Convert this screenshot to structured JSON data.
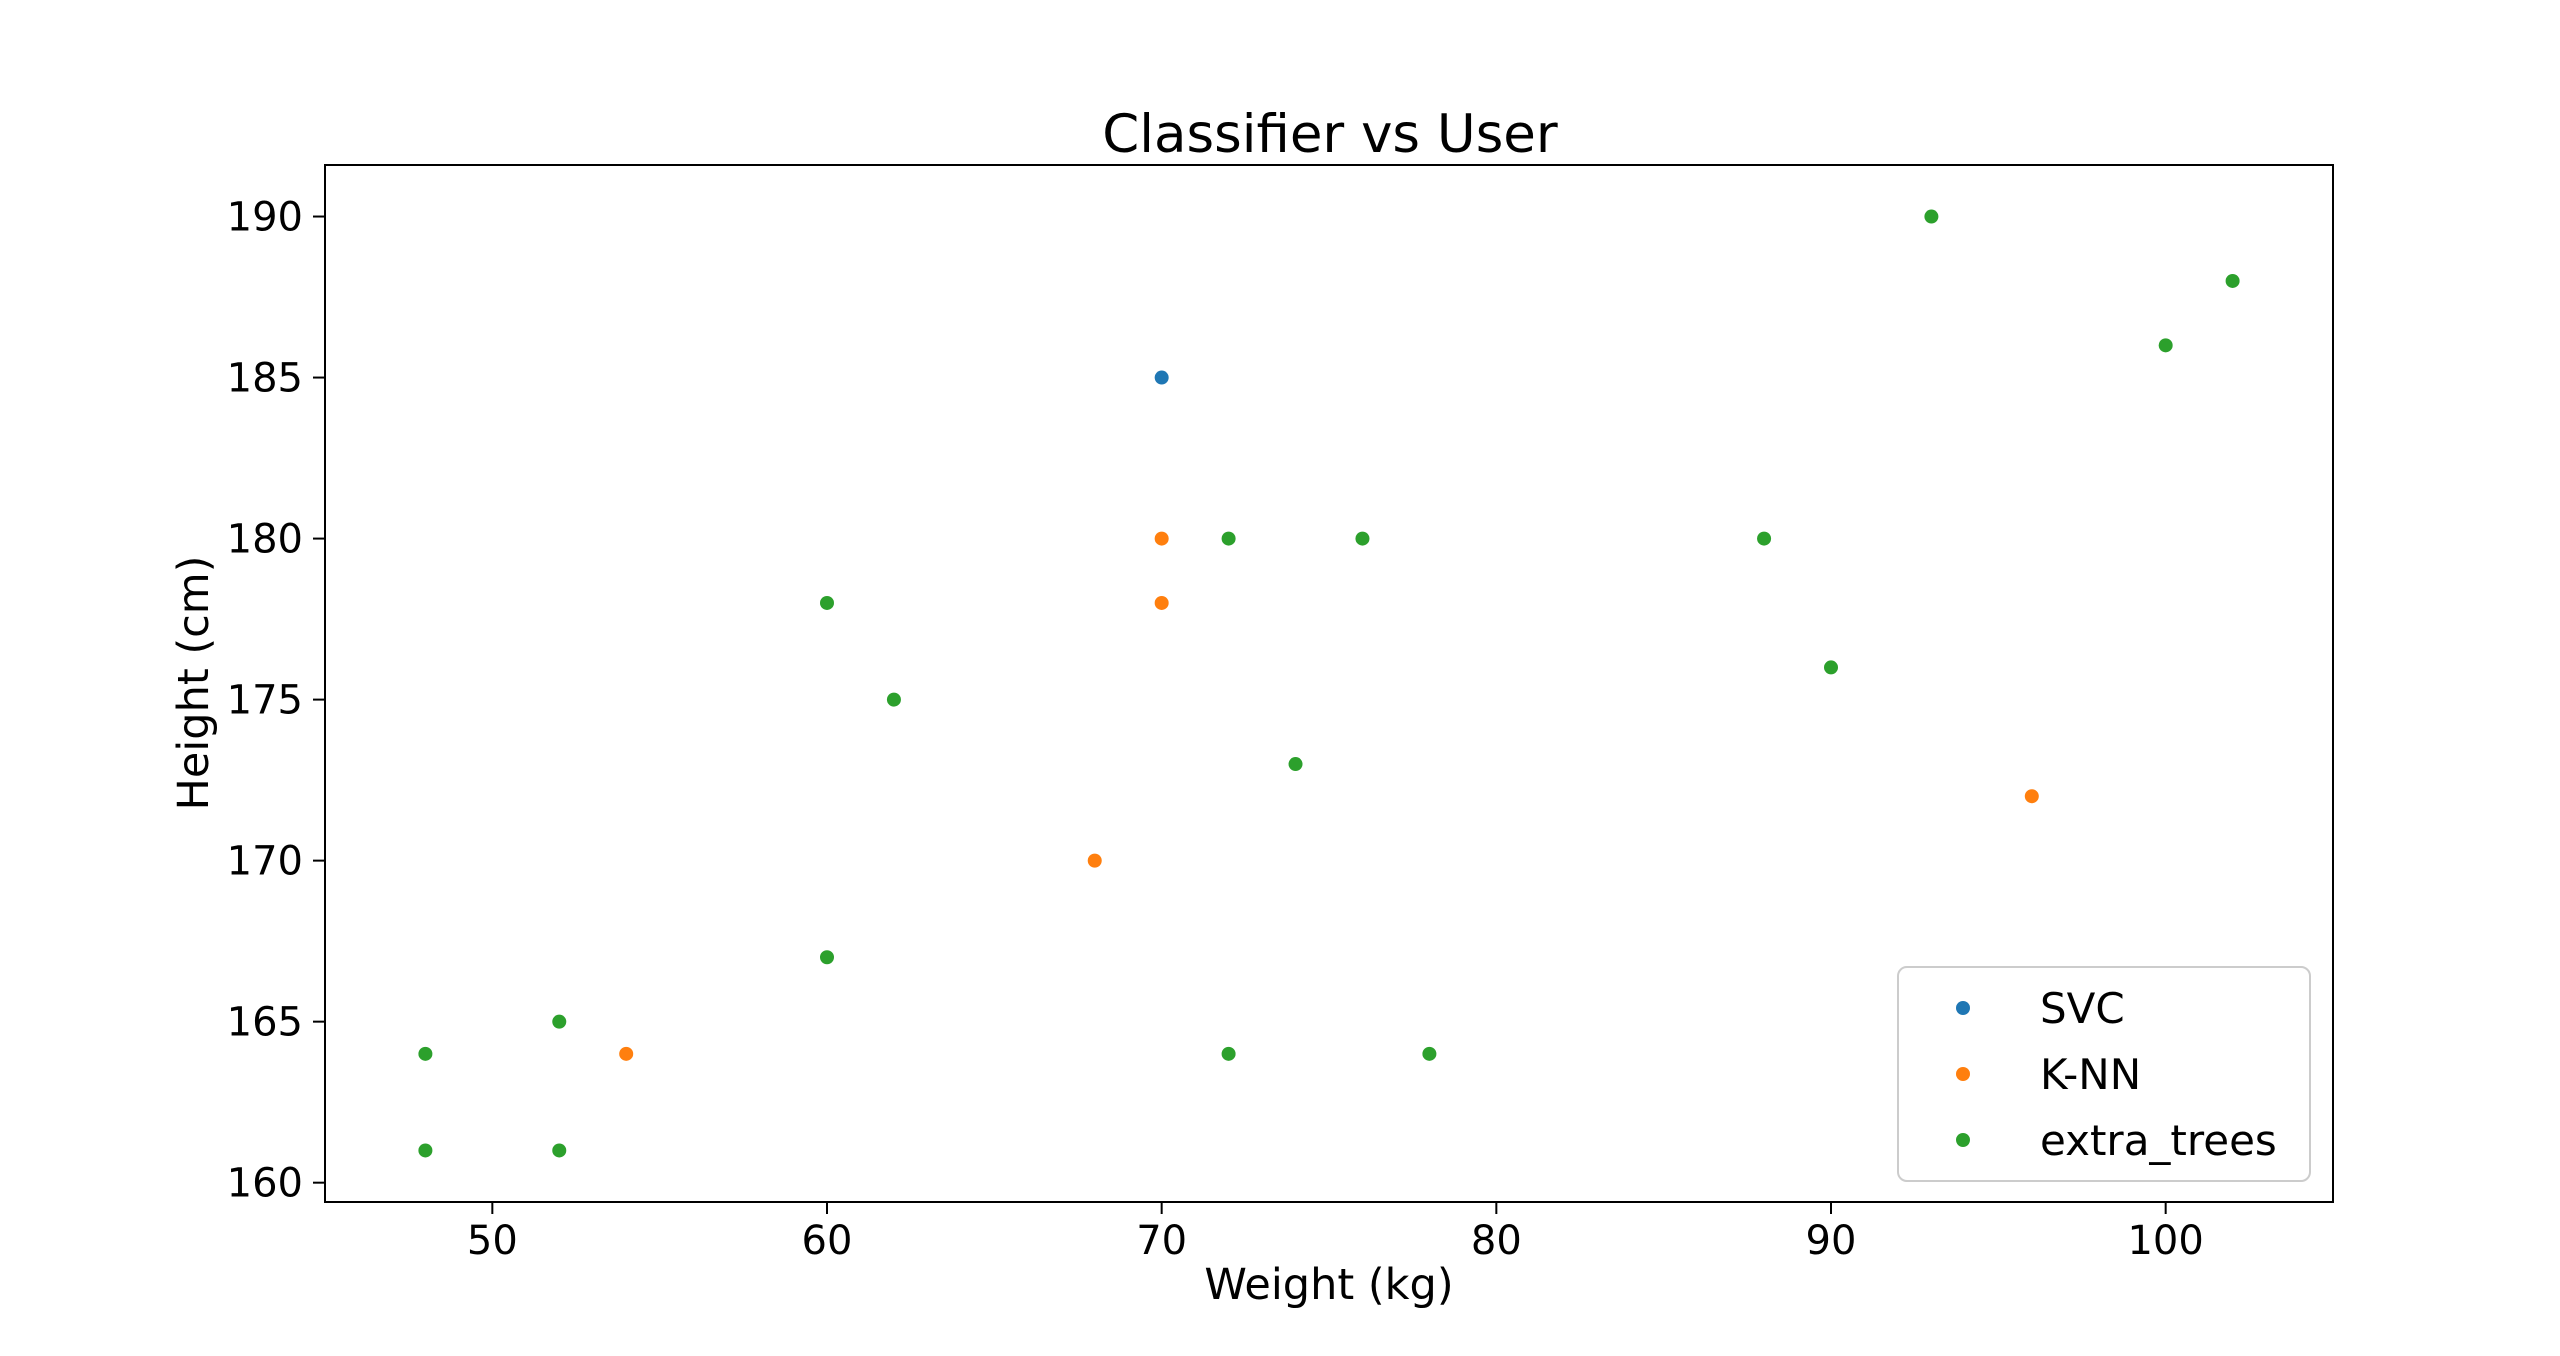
{
  "chart_data": {
    "type": "scatter",
    "title": "Classifier vs User",
    "xlabel": "Weight (kg)",
    "ylabel": "Height (cm)",
    "xlim": [
      45,
      105
    ],
    "ylim": [
      159.4,
      191.6
    ],
    "xticks": [
      50,
      60,
      70,
      80,
      90,
      100
    ],
    "yticks": [
      160,
      165,
      170,
      175,
      180,
      185,
      190
    ],
    "grid": false,
    "legend_position": "lower-right",
    "series": [
      {
        "name": "SVC",
        "color": "#1f77b4",
        "points": [
          [
            70,
            185
          ]
        ]
      },
      {
        "name": "K-NN",
        "color": "#ff7f0e",
        "points": [
          [
            70,
            180
          ],
          [
            70,
            178
          ],
          [
            68,
            170
          ],
          [
            54,
            164
          ],
          [
            96,
            172
          ]
        ]
      },
      {
        "name": "extra_trees",
        "color": "#2ca02c",
        "points": [
          [
            93,
            190
          ],
          [
            102,
            188
          ],
          [
            100,
            186
          ],
          [
            72,
            180
          ],
          [
            76,
            180
          ],
          [
            88,
            180
          ],
          [
            60,
            178
          ],
          [
            90,
            176
          ],
          [
            62,
            175
          ],
          [
            74,
            173
          ],
          [
            60,
            167
          ],
          [
            52,
            165
          ],
          [
            48,
            164
          ],
          [
            72,
            164
          ],
          [
            78,
            164
          ],
          [
            48,
            161
          ],
          [
            52,
            161
          ]
        ]
      }
    ]
  }
}
